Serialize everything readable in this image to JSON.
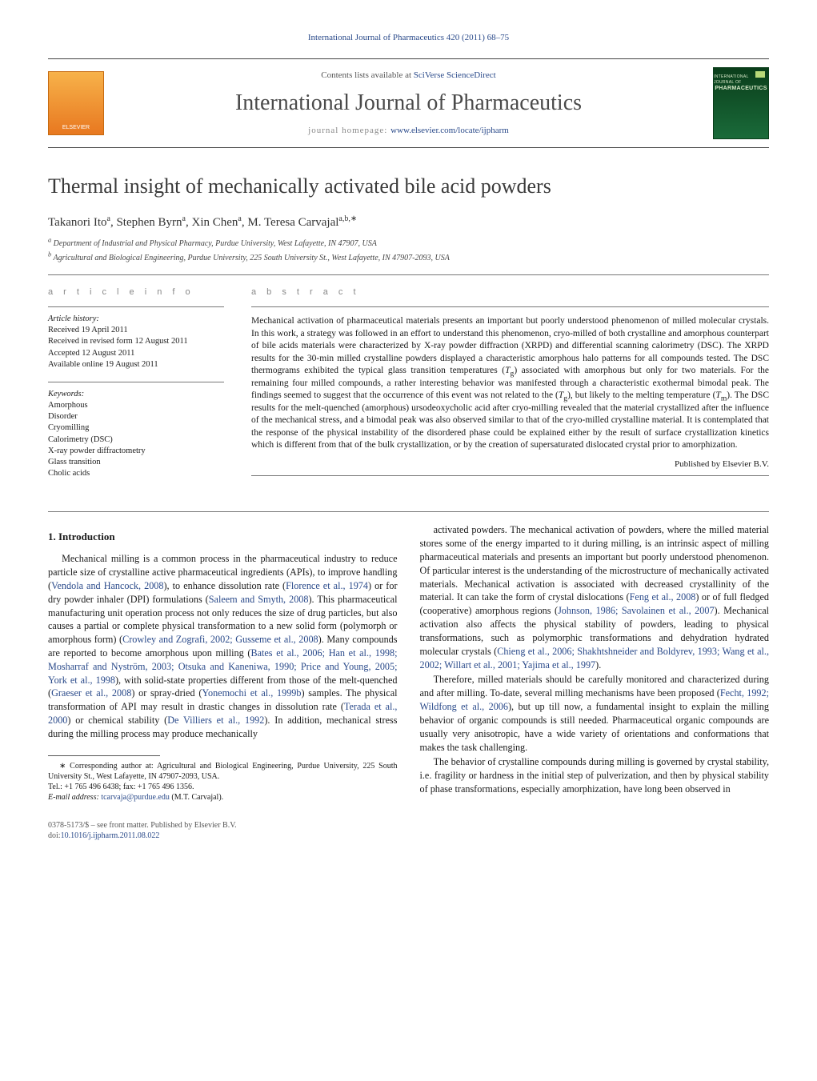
{
  "journal_ref": "International Journal of Pharmaceutics 420 (2011) 68–75",
  "header": {
    "contents_prefix": "Contents lists available at ",
    "contents_link": "SciVerse ScienceDirect",
    "journal_title": "International Journal of Pharmaceutics",
    "homepage_prefix": "journal homepage: ",
    "homepage_url": "www.elsevier.com/locate/ijpharm",
    "elsevier_text": "ELSEVIER",
    "cover_label_top": "INTERNATIONAL JOURNAL OF",
    "cover_label_main": "PHARMACEUTICS"
  },
  "article": {
    "title": "Thermal insight of mechanically activated bile acid powders",
    "authors_html": "Takanori Ito<sup>a</sup>, Stephen Byrn<sup>a</sup>, Xin Chen<sup>a</sup>, M. Teresa Carvajal<sup>a,b,∗</sup>",
    "authors_plain": "Takanori Ito, Stephen Byrn, Xin Chen, M. Teresa Carvajal",
    "affiliations": [
      "a Department of Industrial and Physical Pharmacy, Purdue University, West Lafayette, IN 47907, USA",
      "b Agricultural and Biological Engineering, Purdue University, 225 South University St., West Lafayette, IN 47907-2093, USA"
    ]
  },
  "article_info": {
    "section_label": "a r t i c l e   i n f o",
    "history_label": "Article history:",
    "history": [
      "Received 19 April 2011",
      "Received in revised form 12 August 2011",
      "Accepted 12 August 2011",
      "Available online 19 August 2011"
    ],
    "keywords_label": "Keywords:",
    "keywords": [
      "Amorphous",
      "Disorder",
      "Cryomilling",
      "Calorimetry (DSC)",
      "X-ray powder diffractometry",
      "Glass transition",
      "Cholic acids"
    ]
  },
  "abstract": {
    "section_label": "a b s t r a c t",
    "text": "Mechanical activation of pharmaceutical materials presents an important but poorly understood phenomenon of milled molecular crystals. In this work, a strategy was followed in an effort to understand this phenomenon, cryo-milled of both crystalline and amorphous counterpart of bile acids materials were characterized by X-ray powder diffraction (XRPD) and differential scanning calorimetry (DSC). The XRPD results for the 30-min milled crystalline powders displayed a characteristic amorphous halo patterns for all compounds tested. The DSC thermograms exhibited the typical glass transition temperatures (Tg) associated with amorphous but only for two materials. For the remaining four milled compounds, a rather interesting behavior was manifested through a characteristic exothermal bimodal peak. The findings seemed to suggest that the occurrence of this event was not related to the (Tg), but likely to the melting temperature (Tm). The DSC results for the melt-quenched (amorphous) ursodeoxycholic acid after cryo-milling revealed that the material crystallized after the influence of the mechanical stress, and a bimodal peak was also observed similar to that of the cryo-milled crystalline material. It is contemplated that the response of the physical instability of the disordered phase could be explained either by the result of surface crystallization kinetics which is different from that of the bulk crystallization, or by the creation of supersaturated dislocated crystal prior to amorphization.",
    "publisher": "Published by Elsevier B.V."
  },
  "body": {
    "intro_heading": "1.  Introduction",
    "p1a": "Mechanical milling is a common process in the pharmaceutical industry to reduce particle size of crystalline active pharmaceutical ingredients (APIs), to improve handling (",
    "r1": "Vendola and Hancock, 2008",
    "p1b": "), to enhance dissolution rate (",
    "r2": "Florence et al., 1974",
    "p1c": ") or for dry powder inhaler (DPI) formulations (",
    "r3": "Saleem and Smyth, 2008",
    "p1d": "). This pharmaceutical manufacturing unit operation process not only reduces the size of drug particles, but also causes a partial or complete physical transformation to a new solid form (polymorph or amorphous form) (",
    "r4": "Crowley and Zografi, 2002; Gusseme et al., 2008",
    "p1e": "). Many compounds are reported to become amorphous upon milling (",
    "r5": "Bates et al., 2006; Han et al., 1998; Mosharraf and Nyström, 2003; Otsuka and Kaneniwa, 1990; Price and Young, 2005; York et al., 1998",
    "p1f": "), with solid-state properties different from those of the melt-quenched (",
    "r6": "Graeser et al., 2008",
    "p1g": ") or spray-dried (",
    "r7": "Yonemochi et al., 1999b",
    "p1h": ") samples. The physical transformation of API may result in drastic changes in dissolution rate (",
    "r8": "Terada et al., 2000",
    "p1i": ") or chemical stability (",
    "r9": "De Villiers et al., 1992",
    "p1j": "). In addition, mechanical stress during the milling process may produce mechanically",
    "p2a": "activated powders. The mechanical activation of powders, where the milled material stores some of the energy imparted to it during milling, is an intrinsic aspect of milling pharmaceutical materials and presents an important but poorly understood phenomenon. Of particular interest is the understanding of the microstructure of mechanically activated materials. Mechanical activation is associated with decreased crystallinity of the material. It can take the form of crystal dislocations (",
    "r10": "Feng et al., 2008",
    "p2b": ") or of full fledged (cooperative) amorphous regions (",
    "r11": "Johnson, 1986; Savolainen et al., 2007",
    "p2c": "). Mechanical activation also affects the physical stability of powders, leading to physical transformations, such as polymorphic transformations and dehydration hydrated molecular crystals (",
    "r12": "Chieng et al., 2006; Shakhtshneider and Boldyrev, 1993; Wang et al., 2002; Willart et al., 2001; Yajima et al., 1997",
    "p2d": ").",
    "p3a": "Therefore, milled materials should be carefully monitored and characterized during and after milling. To-date, several milling mechanisms have been proposed (",
    "r13": "Fecht, 1992; Wildfong et al., 2006",
    "p3b": "), but up till now, a fundamental insight to explain the milling behavior of organic compounds is still needed. Pharmaceutical organic compounds are usually very anisotropic, have a wide variety of orientations and conformations that makes the task challenging.",
    "p4": "The behavior of crystalline compounds during milling is governed by crystal stability, i.e. fragility or hardness in the initial step of pulverization, and then by physical stability of phase transformations, especially amorphization, have long been observed in"
  },
  "footnote": {
    "corr_label": "∗ Corresponding author at: Agricultural and Biological Engineering, Purdue University, 225 South University St., West Lafayette, IN 47907-2093, USA.",
    "tel": "Tel.: +1 765 496 6438; fax: +1 765 496 1356.",
    "email_label": "E-mail address: ",
    "email": "tcarvaja@purdue.edu",
    "email_who": " (M.T. Carvajal)."
  },
  "footer": {
    "line1": "0378-5173/$ – see front matter. Published by Elsevier B.V.",
    "doi_label": "doi:",
    "doi": "10.1016/j.ijpharm.2011.08.022"
  },
  "colors": {
    "link": "#2a4a8a",
    "text": "#1a1a1a",
    "muted": "#888888",
    "rule": "#777777"
  }
}
